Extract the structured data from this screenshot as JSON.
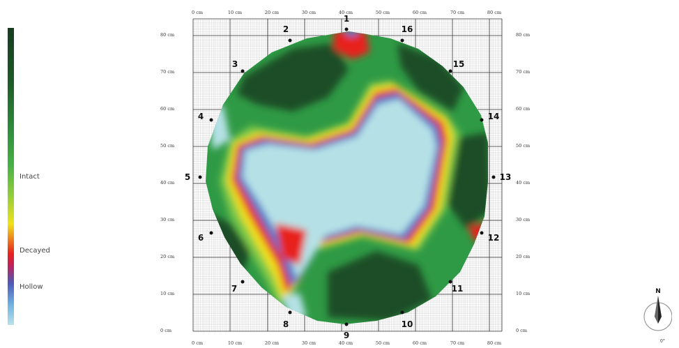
{
  "legend": {
    "intact_label": "Intact",
    "decayed_label": "Decayed",
    "hollow_label": "Hollow"
  },
  "axes": {
    "x_ticks": [
      "0 cm",
      "10 cm",
      "20 cm",
      "30 cm",
      "40 cm",
      "50 cm",
      "60 cm",
      "70 cm",
      "80 cm"
    ],
    "y_ticks": [
      "80 cm",
      "70 cm",
      "60 cm",
      "50 cm",
      "40 cm",
      "30 cm",
      "20 cm",
      "10 cm",
      "0 cm"
    ]
  },
  "stations": [
    "1",
    "2",
    "3",
    "4",
    "5",
    "6",
    "7",
    "8",
    "9",
    "10",
    "11",
    "12",
    "13",
    "14",
    "15",
    "16"
  ],
  "compass": {
    "letter": "N",
    "degrees": "0°"
  },
  "colors": {
    "intact_dark": "#1d4d25",
    "intact": "#2f9a45",
    "healthy_light": "#7cc84a",
    "transition": "#f0e21a",
    "decayed": "#e7221f",
    "hollow": "#4e73c9",
    "hollow_light": "#b5e1e6"
  }
}
